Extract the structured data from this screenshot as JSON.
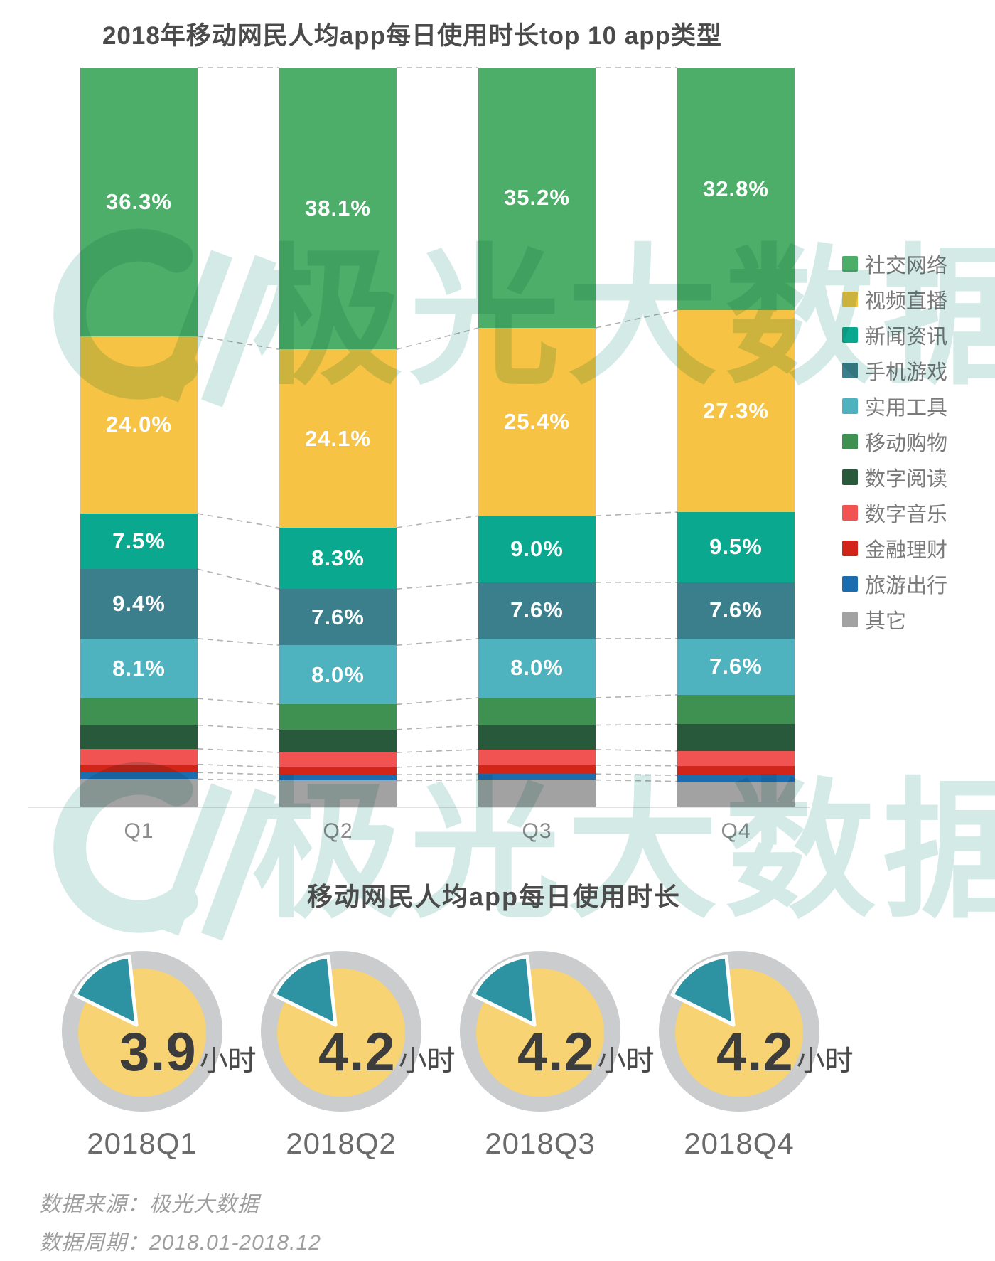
{
  "chart_data": [
    {
      "type": "bar",
      "stacked": true,
      "title": "2018年移动网民人均app每日使用时长top 10 app类型",
      "unit": "%",
      "legend_position": "right",
      "categories": [
        "Q1",
        "Q2",
        "Q3",
        "Q4"
      ],
      "series": [
        {
          "name": "社交网络",
          "color": "#4cae69",
          "labeled": true,
          "values": [
            36.3,
            38.1,
            35.2,
            32.8
          ]
        },
        {
          "name": "视频直播",
          "color": "#f6c344",
          "labeled": true,
          "values": [
            24.0,
            24.1,
            25.4,
            27.3
          ]
        },
        {
          "name": "新闻资讯",
          "color": "#0aa88e",
          "labeled": true,
          "values": [
            7.5,
            8.3,
            9.0,
            9.5
          ]
        },
        {
          "name": "手机游戏",
          "color": "#3c7f8c",
          "labeled": true,
          "values": [
            9.4,
            7.6,
            7.6,
            7.6
          ]
        },
        {
          "name": "实用工具",
          "color": "#4fb3bf",
          "labeled": true,
          "values": [
            8.1,
            8.0,
            8.0,
            7.6
          ]
        },
        {
          "name": "移动购物",
          "color": "#3e9151",
          "labeled": false,
          "values": [
            3.6,
            3.4,
            3.7,
            4.0
          ]
        },
        {
          "name": "数字阅读",
          "color": "#27593a",
          "labeled": false,
          "values": [
            3.2,
            3.1,
            3.3,
            3.6
          ]
        },
        {
          "name": "数字音乐",
          "color": "#f05352",
          "labeled": false,
          "values": [
            2.1,
            2.0,
            2.1,
            2.0
          ]
        },
        {
          "name": "金融理财",
          "color": "#d2251a",
          "labeled": false,
          "values": [
            1.1,
            1.0,
            1.2,
            1.3
          ]
        },
        {
          "name": "旅游出行",
          "color": "#1c6cb0",
          "labeled": false,
          "values": [
            0.9,
            0.8,
            0.8,
            0.8
          ]
        },
        {
          "name": "其它",
          "color": "#a2a2a2",
          "labeled": false,
          "values": [
            3.8,
            3.6,
            3.7,
            3.5
          ]
        }
      ]
    },
    {
      "type": "pie",
      "title": "移动网民人均app每日使用时长",
      "unit": "小时",
      "categories": [
        "2018Q1",
        "2018Q2",
        "2018Q3",
        "2018Q4"
      ],
      "values": [
        3.9,
        4.2,
        4.2,
        4.2
      ],
      "colors": {
        "ring": "#cbcccd",
        "face": "#f8d373",
        "slice": "#2d93a2"
      }
    }
  ],
  "watermark": {
    "text": "极光大数据",
    "color": "#aed9d1"
  },
  "footer": {
    "source": "数据来源：极光大数据",
    "period": "数据周期：2018.01-2018.12"
  }
}
